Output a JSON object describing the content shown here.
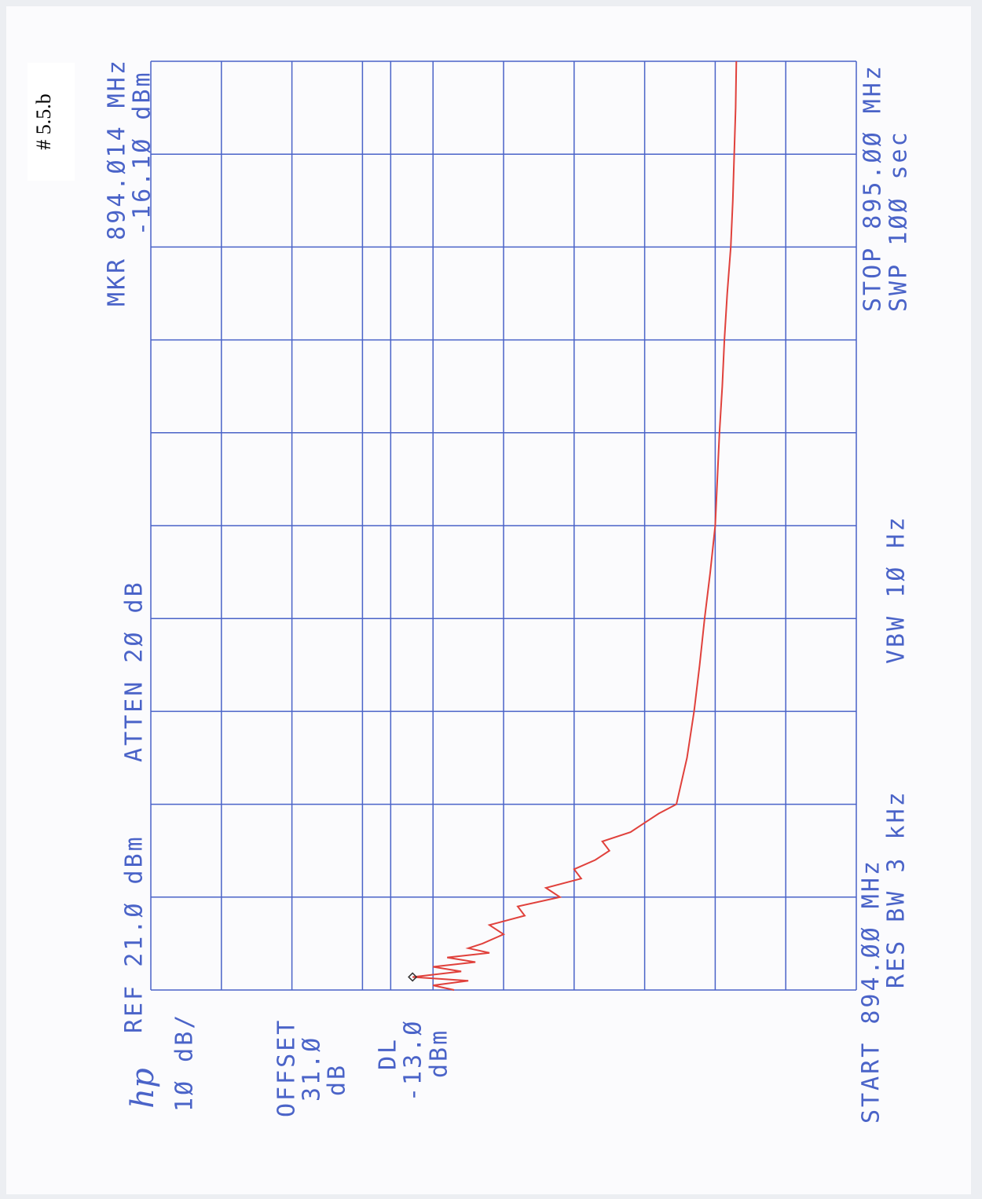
{
  "chart_data": {
    "type": "line",
    "figure_label": "# 5.5.b",
    "logo": "hp",
    "marker_label": "MKR 894.Ø14 MHz",
    "marker_value_label": "-16.1Ø dBm",
    "ref_label": "REF 21.Ø dBm",
    "atten_label": "ATTEN 2Ø dB",
    "scale_label": "1Ø dB/",
    "offset_title": "OFFSET",
    "offset_value": "31.Ø",
    "offset_unit": "dB",
    "dl_title": "DL",
    "dl_value_label": "-13.Ø",
    "dl_unit": "dBm",
    "start_label": "START 894.ØØ MHz",
    "stop_label": "STOP 895.ØØ MHz",
    "rbw_label": "RES BW 3 kHz",
    "vbw_label": "VBW 1Ø  Hz",
    "sweep_label": "SWP 1ØØ  sec",
    "color": "#e0413c",
    "grid_color": "#4a63c8",
    "grid": true,
    "xlim": [
      894,
      895
    ],
    "xticks": [
      894,
      894.1,
      894.2,
      894.3,
      894.4,
      894.5,
      894.6,
      894.7,
      894.8,
      894.9,
      895
    ],
    "ylim": [
      -79,
      21
    ],
    "yticks": [
      -79,
      -69,
      -59,
      -49,
      -39,
      -29,
      -19,
      -9,
      1,
      11,
      21
    ],
    "dl": -13,
    "marker": {
      "x": 894.014,
      "value": -16.1
    },
    "x": [
      894,
      894.005,
      894.01,
      894.014,
      894.02,
      894.025,
      894.03,
      894.035,
      894.04,
      894.045,
      894.05,
      894.06,
      894.07,
      894.08,
      894.09,
      894.1,
      894.11,
      894.12,
      894.13,
      894.14,
      894.15,
      894.16,
      894.17,
      894.18,
      894.19,
      894.2,
      894.25,
      894.3,
      894.35,
      894.4,
      894.45,
      894.5,
      894.55,
      894.6,
      894.65,
      894.7,
      894.75,
      894.8,
      894.85,
      894.9,
      894.95,
      895
    ],
    "values": [
      -22,
      -19,
      -24,
      -16.1,
      -23,
      -19,
      -25,
      -21,
      -27,
      -24,
      -26,
      -29,
      -27,
      -32,
      -31,
      -37,
      -35,
      -40,
      -39,
      -42,
      -44,
      -43,
      -47,
      -49,
      -51,
      -53.5,
      -55,
      -56,
      -56.8,
      -57.5,
      -58.3,
      -59,
      -59.3,
      -59.6,
      -60,
      -60.3,
      -60.7,
      -61.2,
      -61.5,
      -61.7,
      -61.9,
      -62
    ]
  }
}
